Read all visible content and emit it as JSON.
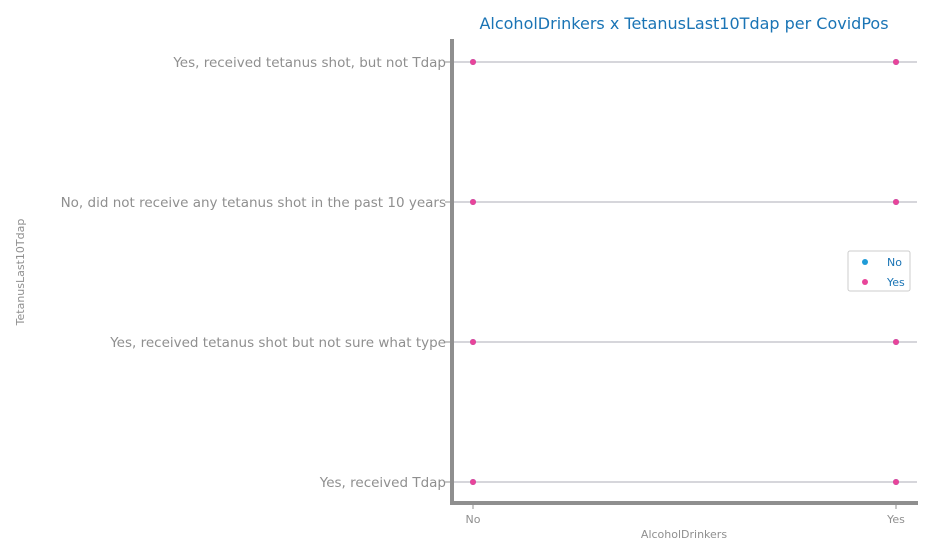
{
  "chart_data": {
    "type": "scatter",
    "title": "AlcoholDrinkers x TetanusLast10Tdap per CovidPos",
    "xlabel": "AlcoholDrinkers",
    "ylabel": "TetanusLast10Tdap",
    "x_categories": [
      "No",
      "Yes"
    ],
    "y_categories": [
      "Yes, received Tdap",
      "Yes, received tetanus shot but not sure what type",
      "No, did not receive any tetanus shot in the past 10 years",
      "Yes, received tetanus shot, but not Tdap"
    ],
    "legend_position": "right",
    "grid": "horizontal",
    "series": [
      {
        "name": "No",
        "color": "#1f9bd7",
        "points": [
          {
            "x": "No",
            "y": "Yes, received Tdap"
          },
          {
            "x": "No",
            "y": "Yes, received tetanus shot but not sure what type"
          },
          {
            "x": "No",
            "y": "No, did not receive any tetanus shot in the past 10 years"
          },
          {
            "x": "No",
            "y": "Yes, received tetanus shot, but not Tdap"
          },
          {
            "x": "Yes",
            "y": "Yes, received Tdap"
          },
          {
            "x": "Yes",
            "y": "Yes, received tetanus shot but not sure what type"
          },
          {
            "x": "Yes",
            "y": "No, did not receive any tetanus shot in the past 10 years"
          },
          {
            "x": "Yes",
            "y": "Yes, received tetanus shot, but not Tdap"
          }
        ]
      },
      {
        "name": "Yes",
        "color": "#e8459a",
        "points": [
          {
            "x": "No",
            "y": "Yes, received Tdap"
          },
          {
            "x": "No",
            "y": "Yes, received tetanus shot but not sure what type"
          },
          {
            "x": "No",
            "y": "No, did not receive any tetanus shot in the past 10 years"
          },
          {
            "x": "No",
            "y": "Yes, received tetanus shot, but not Tdap"
          },
          {
            "x": "Yes",
            "y": "Yes, received Tdap"
          },
          {
            "x": "Yes",
            "y": "Yes, received tetanus shot but not sure what type"
          },
          {
            "x": "Yes",
            "y": "No, did not receive any tetanus shot in the past 10 years"
          },
          {
            "x": "Yes",
            "y": "Yes, received tetanus shot, but not Tdap"
          }
        ]
      }
    ]
  }
}
